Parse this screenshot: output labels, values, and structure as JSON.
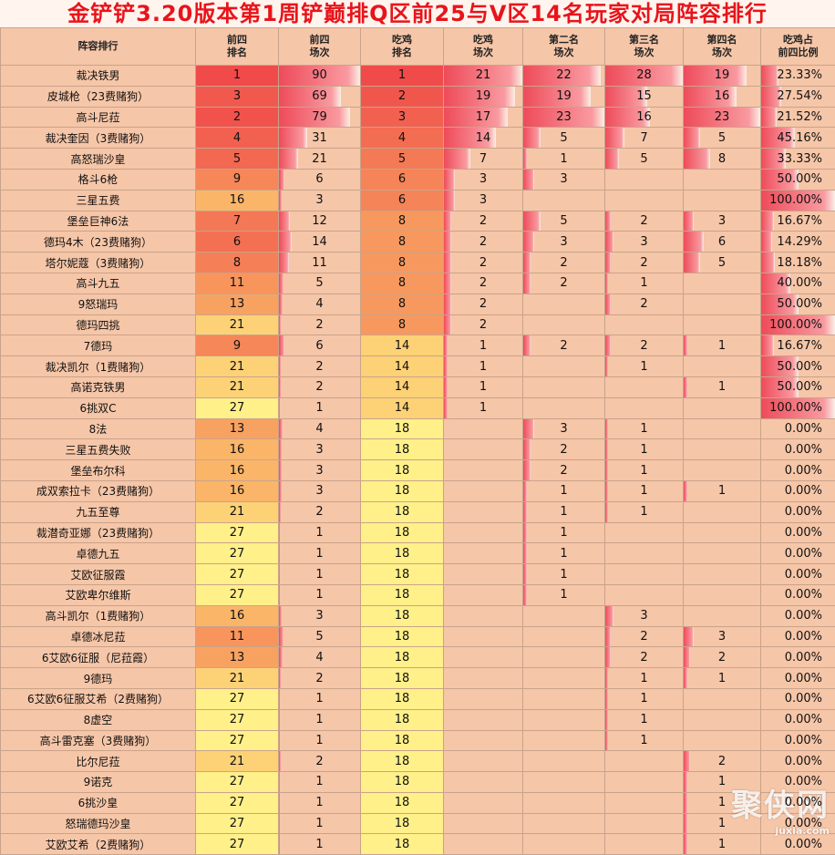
{
  "title": "金铲铲3.20版本第1周铲巅排Q区前25与V区14名玩家对局阵容排行",
  "headers": [
    "阵容排行",
    "前四\n排名",
    "前四\n场次",
    "吃鸡\n排名",
    "吃鸡\n场次",
    "第二名\n场次",
    "第三名\n场次",
    "第四名\n场次",
    "吃鸡占\n前四比例"
  ],
  "rows": [
    {
      "name": "裁决铁男",
      "t4rank": "1",
      "t4": "90",
      "winrank": "1",
      "win": "21",
      "second": "22",
      "third": "28",
      "fourth": "19",
      "ratio": "23.33%"
    },
    {
      "name": "皮城枪（23费赌狗）",
      "t4rank": "3",
      "t4": "69",
      "winrank": "2",
      "win": "19",
      "second": "19",
      "third": "15",
      "fourth": "16",
      "ratio": "27.54%"
    },
    {
      "name": "高斗尼菈",
      "t4rank": "2",
      "t4": "79",
      "winrank": "3",
      "win": "17",
      "second": "23",
      "third": "16",
      "fourth": "23",
      "ratio": "21.52%"
    },
    {
      "name": "裁决奎因（3费赌狗）",
      "t4rank": "4",
      "t4": "31",
      "winrank": "4",
      "win": "14",
      "second": "5",
      "third": "7",
      "fourth": "5",
      "ratio": "45.16%"
    },
    {
      "name": "高怒瑞沙皇",
      "t4rank": "5",
      "t4": "21",
      "winrank": "5",
      "win": "7",
      "second": "1",
      "third": "5",
      "fourth": "8",
      "ratio": "33.33%"
    },
    {
      "name": "格斗6枪",
      "t4rank": "9",
      "t4": "6",
      "winrank": "6",
      "win": "3",
      "second": "3",
      "third": "",
      "fourth": "",
      "ratio": "50.00%"
    },
    {
      "name": "三星五费",
      "t4rank": "16",
      "t4": "3",
      "winrank": "6",
      "win": "3",
      "second": "",
      "third": "",
      "fourth": "",
      "ratio": "100.00%"
    },
    {
      "name": "堡垒巨神6法",
      "t4rank": "7",
      "t4": "12",
      "winrank": "8",
      "win": "2",
      "second": "5",
      "third": "2",
      "fourth": "3",
      "ratio": "16.67%"
    },
    {
      "name": "德玛4木（23费赌狗）",
      "t4rank": "6",
      "t4": "14",
      "winrank": "8",
      "win": "2",
      "second": "3",
      "third": "3",
      "fourth": "6",
      "ratio": "14.29%"
    },
    {
      "name": "塔尔妮蔻（3费赌狗）",
      "t4rank": "8",
      "t4": "11",
      "winrank": "8",
      "win": "2",
      "second": "2",
      "third": "2",
      "fourth": "5",
      "ratio": "18.18%"
    },
    {
      "name": "高斗九五",
      "t4rank": "11",
      "t4": "5",
      "winrank": "8",
      "win": "2",
      "second": "2",
      "third": "1",
      "fourth": "",
      "ratio": "40.00%"
    },
    {
      "name": "9怒瑞玛",
      "t4rank": "13",
      "t4": "4",
      "winrank": "8",
      "win": "2",
      "second": "",
      "third": "2",
      "fourth": "",
      "ratio": "50.00%"
    },
    {
      "name": "德玛四挑",
      "t4rank": "21",
      "t4": "2",
      "winrank": "8",
      "win": "2",
      "second": "",
      "third": "",
      "fourth": "",
      "ratio": "100.00%"
    },
    {
      "name": "7德玛",
      "t4rank": "9",
      "t4": "6",
      "winrank": "14",
      "win": "1",
      "second": "2",
      "third": "2",
      "fourth": "1",
      "ratio": "16.67%"
    },
    {
      "name": "裁决凯尔（1费赌狗）",
      "t4rank": "21",
      "t4": "2",
      "winrank": "14",
      "win": "1",
      "second": "",
      "third": "1",
      "fourth": "",
      "ratio": "50.00%"
    },
    {
      "name": "高诺克铁男",
      "t4rank": "21",
      "t4": "2",
      "winrank": "14",
      "win": "1",
      "second": "",
      "third": "",
      "fourth": "1",
      "ratio": "50.00%"
    },
    {
      "name": "6挑双C",
      "t4rank": "27",
      "t4": "1",
      "winrank": "14",
      "win": "1",
      "second": "",
      "third": "",
      "fourth": "",
      "ratio": "100.00%"
    },
    {
      "name": "8法",
      "t4rank": "13",
      "t4": "4",
      "winrank": "18",
      "win": "",
      "second": "3",
      "third": "1",
      "fourth": "",
      "ratio": "0.00%"
    },
    {
      "name": "三星五费失败",
      "t4rank": "16",
      "t4": "3",
      "winrank": "18",
      "win": "",
      "second": "2",
      "third": "1",
      "fourth": "",
      "ratio": "0.00%"
    },
    {
      "name": "堡垒布尔科",
      "t4rank": "16",
      "t4": "3",
      "winrank": "18",
      "win": "",
      "second": "2",
      "third": "1",
      "fourth": "",
      "ratio": "0.00%"
    },
    {
      "name": "成双索拉卡（23费赌狗）",
      "t4rank": "16",
      "t4": "3",
      "winrank": "18",
      "win": "",
      "second": "1",
      "third": "1",
      "fourth": "1",
      "ratio": "0.00%"
    },
    {
      "name": "九五至尊",
      "t4rank": "21",
      "t4": "2",
      "winrank": "18",
      "win": "",
      "second": "1",
      "third": "1",
      "fourth": "",
      "ratio": "0.00%"
    },
    {
      "name": "裁潜奇亚娜（23费赌狗）",
      "t4rank": "27",
      "t4": "1",
      "winrank": "18",
      "win": "",
      "second": "1",
      "third": "",
      "fourth": "",
      "ratio": "0.00%"
    },
    {
      "name": "卓德九五",
      "t4rank": "27",
      "t4": "1",
      "winrank": "18",
      "win": "",
      "second": "1",
      "third": "",
      "fourth": "",
      "ratio": "0.00%"
    },
    {
      "name": "艾欧征服霞",
      "t4rank": "27",
      "t4": "1",
      "winrank": "18",
      "win": "",
      "second": "1",
      "third": "",
      "fourth": "",
      "ratio": "0.00%"
    },
    {
      "name": "艾欧卑尔维斯",
      "t4rank": "27",
      "t4": "1",
      "winrank": "18",
      "win": "",
      "second": "1",
      "third": "",
      "fourth": "",
      "ratio": "0.00%"
    },
    {
      "name": "高斗凯尔（1费赌狗）",
      "t4rank": "16",
      "t4": "3",
      "winrank": "18",
      "win": "",
      "second": "",
      "third": "3",
      "fourth": "",
      "ratio": "0.00%"
    },
    {
      "name": "卓德冰尼菈",
      "t4rank": "11",
      "t4": "5",
      "winrank": "18",
      "win": "",
      "second": "",
      "third": "2",
      "fourth": "3",
      "ratio": "0.00%"
    },
    {
      "name": "6艾欧6征服（尼菈霞）",
      "t4rank": "13",
      "t4": "4",
      "winrank": "18",
      "win": "",
      "second": "",
      "third": "2",
      "fourth": "2",
      "ratio": "0.00%"
    },
    {
      "name": "9德玛",
      "t4rank": "21",
      "t4": "2",
      "winrank": "18",
      "win": "",
      "second": "",
      "third": "1",
      "fourth": "1",
      "ratio": "0.00%"
    },
    {
      "name": "6艾欧6征服艾希（2费赌狗）",
      "t4rank": "27",
      "t4": "1",
      "winrank": "18",
      "win": "",
      "second": "",
      "third": "1",
      "fourth": "",
      "ratio": "0.00%"
    },
    {
      "name": "8虚空",
      "t4rank": "27",
      "t4": "1",
      "winrank": "18",
      "win": "",
      "second": "",
      "third": "1",
      "fourth": "",
      "ratio": "0.00%"
    },
    {
      "name": "高斗雷克塞（3费赌狗）",
      "t4rank": "27",
      "t4": "1",
      "winrank": "18",
      "win": "",
      "second": "",
      "third": "1",
      "fourth": "",
      "ratio": "0.00%"
    },
    {
      "name": "比尔尼菈",
      "t4rank": "21",
      "t4": "2",
      "winrank": "18",
      "win": "",
      "second": "",
      "third": "",
      "fourth": "2",
      "ratio": "0.00%"
    },
    {
      "name": "9诺克",
      "t4rank": "27",
      "t4": "1",
      "winrank": "18",
      "win": "",
      "second": "",
      "third": "",
      "fourth": "1",
      "ratio": "0.00%"
    },
    {
      "name": "6挑沙皇",
      "t4rank": "27",
      "t4": "1",
      "winrank": "18",
      "win": "",
      "second": "",
      "third": "",
      "fourth": "1",
      "ratio": "0.00%"
    },
    {
      "name": "怒瑞德玛沙皇",
      "t4rank": "27",
      "t4": "1",
      "winrank": "18",
      "win": "",
      "second": "",
      "third": "",
      "fourth": "1",
      "ratio": "0.00%"
    },
    {
      "name": "艾欧艾希（2费赌狗）",
      "t4rank": "27",
      "t4": "1",
      "winrank": "18",
      "win": "",
      "second": "",
      "third": "",
      "fourth": "1",
      "ratio": "0.00%"
    }
  ],
  "watermark": {
    "main": "聚侠网",
    "sub": "juxia.com"
  },
  "colors": {
    "title_red": "#e8141b",
    "rank_best": "#f04a4a",
    "rank_worst": "#fff08a",
    "bar": "#ee4b5a",
    "background": "#f6c6a8"
  }
}
